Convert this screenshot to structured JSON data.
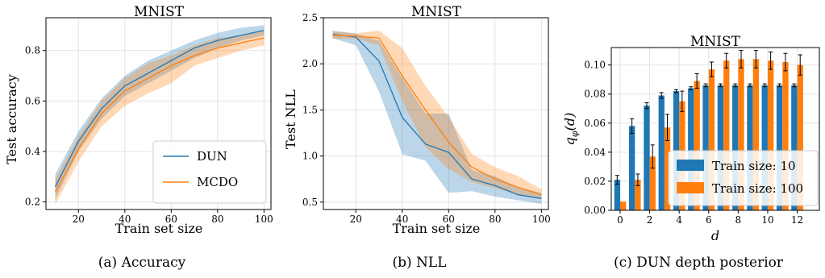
{
  "colors": {
    "dun": "#1f77b4",
    "mcdo": "#ff7f0e",
    "grid": "#e3e3e3"
  },
  "chart_data": [
    {
      "type": "line",
      "title": "MNIST",
      "xlabel": "Train set size",
      "ylabel": "Test accuracy",
      "caption": "(a) Accuracy",
      "xlim": [
        6,
        103
      ],
      "ylim": [
        0.17,
        0.93
      ],
      "xticks": [
        20,
        40,
        60,
        80,
        100
      ],
      "yticks": [
        0.2,
        0.4,
        0.6,
        0.8
      ],
      "ytick_labels": [
        "0.2",
        "0.4",
        "0.6",
        "0.8"
      ],
      "grid": true,
      "legend_position": "lower-right",
      "x": [
        10,
        20,
        30,
        40,
        50,
        60,
        70,
        80,
        90,
        100
      ],
      "series": [
        {
          "name": "DUN",
          "color": "dun",
          "values": [
            0.26,
            0.44,
            0.57,
            0.66,
            0.71,
            0.76,
            0.81,
            0.84,
            0.86,
            0.88
          ],
          "lower": [
            0.21,
            0.4,
            0.53,
            0.62,
            0.67,
            0.72,
            0.77,
            0.81,
            0.84,
            0.86
          ],
          "upper": [
            0.31,
            0.48,
            0.61,
            0.7,
            0.76,
            0.8,
            0.84,
            0.87,
            0.89,
            0.9
          ]
        },
        {
          "name": "MCDO",
          "color": "mcdo",
          "values": [
            0.24,
            0.41,
            0.55,
            0.64,
            0.69,
            0.74,
            0.78,
            0.81,
            0.83,
            0.85
          ],
          "lower": [
            0.19,
            0.36,
            0.5,
            0.58,
            0.63,
            0.67,
            0.74,
            0.77,
            0.8,
            0.82
          ],
          "upper": [
            0.29,
            0.46,
            0.6,
            0.69,
            0.75,
            0.78,
            0.82,
            0.85,
            0.86,
            0.88
          ]
        }
      ]
    },
    {
      "type": "line",
      "title": "MNIST",
      "xlabel": "Train set size",
      "ylabel": "Test NLL",
      "caption": "(b) NLL",
      "xlim": [
        6,
        103
      ],
      "ylim": [
        0.42,
        2.5
      ],
      "xticks": [
        20,
        40,
        60,
        80,
        100
      ],
      "yticks": [
        0.5,
        1.0,
        1.5,
        2.0,
        2.5
      ],
      "ytick_labels": [
        "0.5",
        "1.0",
        "1.5",
        "2.0",
        "2.5"
      ],
      "grid": true,
      "x": [
        10,
        20,
        30,
        40,
        50,
        60,
        70,
        80,
        90,
        100
      ],
      "series": [
        {
          "name": "DUN",
          "color": "dun",
          "values": [
            2.32,
            2.29,
            2.03,
            1.42,
            1.13,
            1.04,
            0.75,
            0.68,
            0.58,
            0.54
          ],
          "lower": [
            2.28,
            2.2,
            1.7,
            1.02,
            0.95,
            0.6,
            0.62,
            0.56,
            0.52,
            0.48
          ],
          "upper": [
            2.36,
            2.33,
            2.25,
            1.85,
            1.46,
            1.46,
            0.85,
            0.78,
            0.66,
            0.6
          ]
        },
        {
          "name": "MCDO",
          "color": "mcdo",
          "values": [
            2.31,
            2.3,
            2.28,
            1.87,
            1.5,
            1.15,
            0.88,
            0.75,
            0.66,
            0.58
          ],
          "lower": [
            2.27,
            2.27,
            2.2,
            1.6,
            1.1,
            0.86,
            0.72,
            0.65,
            0.58,
            0.54
          ],
          "upper": [
            2.35,
            2.33,
            2.36,
            2.17,
            1.76,
            1.42,
            1.02,
            0.88,
            0.78,
            0.64
          ]
        }
      ]
    },
    {
      "type": "bar",
      "title": "MNIST",
      "xlabel": "d",
      "ylabel": "qφ(d)",
      "ylabel_main": "q",
      "ylabel_sub": "φ",
      "ylabel_rest": "(d)",
      "caption": "(c) DUN depth posterior",
      "xlim": [
        -0.6,
        13.5
      ],
      "ylim": [
        0,
        0.112
      ],
      "xticks": [
        0,
        2,
        4,
        6,
        8,
        10,
        12
      ],
      "yticks": [
        0.0,
        0.02,
        0.04,
        0.06,
        0.08,
        0.1
      ],
      "ytick_labels": [
        "0.00",
        "0.02",
        "0.04",
        "0.06",
        "0.08",
        "0.10"
      ],
      "grid": true,
      "legend_position": "lower-right",
      "categories": [
        0,
        1,
        2,
        3,
        4,
        5,
        6,
        7,
        8,
        9,
        10,
        11,
        12
      ],
      "series": [
        {
          "name": "Train size: 10",
          "color": "dun",
          "values": [
            0.021,
            0.058,
            0.072,
            0.079,
            0.082,
            0.084,
            0.086,
            0.086,
            0.086,
            0.086,
            0.086,
            0.086,
            0.086
          ],
          "errors": [
            0.003,
            0.005,
            0.002,
            0.002,
            0.001,
            0.001,
            0.001,
            0.001,
            0.001,
            0.001,
            0.001,
            0.001,
            0.001
          ]
        },
        {
          "name": "Train size: 100",
          "color": "mcdo",
          "values": [
            0.006,
            0.021,
            0.037,
            0.057,
            0.075,
            0.089,
            0.097,
            0.103,
            0.104,
            0.104,
            0.103,
            0.102,
            0.1
          ],
          "errors": [
            0.0,
            0.004,
            0.008,
            0.009,
            0.007,
            0.005,
            0.005,
            0.005,
            0.006,
            0.006,
            0.006,
            0.006,
            0.007
          ]
        }
      ]
    }
  ]
}
